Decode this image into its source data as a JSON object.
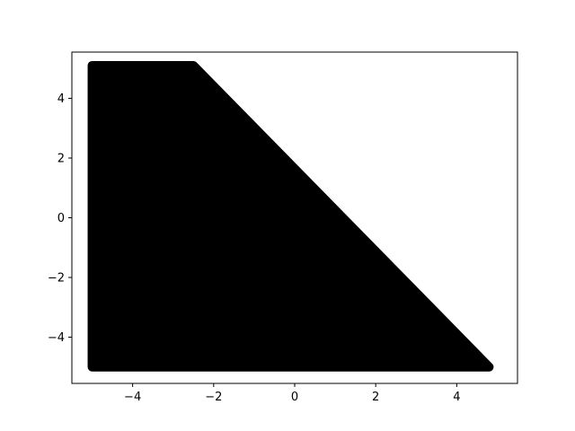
{
  "chart_data": {
    "type": "scatter",
    "title": "",
    "xlabel": "",
    "ylabel": "",
    "xlim": [
      -5.5,
      5.5
    ],
    "ylim": [
      -5.55,
      5.55
    ],
    "xticks": [
      -4,
      -2,
      0,
      2,
      4
    ],
    "yticks": [
      -4,
      -2,
      0,
      2,
      4
    ],
    "xtick_labels": [
      "−4",
      "−2",
      "0",
      "2",
      "4"
    ],
    "ytick_labels": [
      "−4",
      "−2",
      "0",
      "2",
      "4"
    ],
    "grid": false,
    "legend": "none",
    "series": [
      {
        "marker_color": "#000000",
        "region_vertices": [
          [
            -5.0,
            -5.0
          ],
          [
            4.8,
            -5.0
          ],
          [
            -2.5,
            5.1
          ],
          [
            -5.0,
            5.1
          ]
        ]
      }
    ]
  }
}
